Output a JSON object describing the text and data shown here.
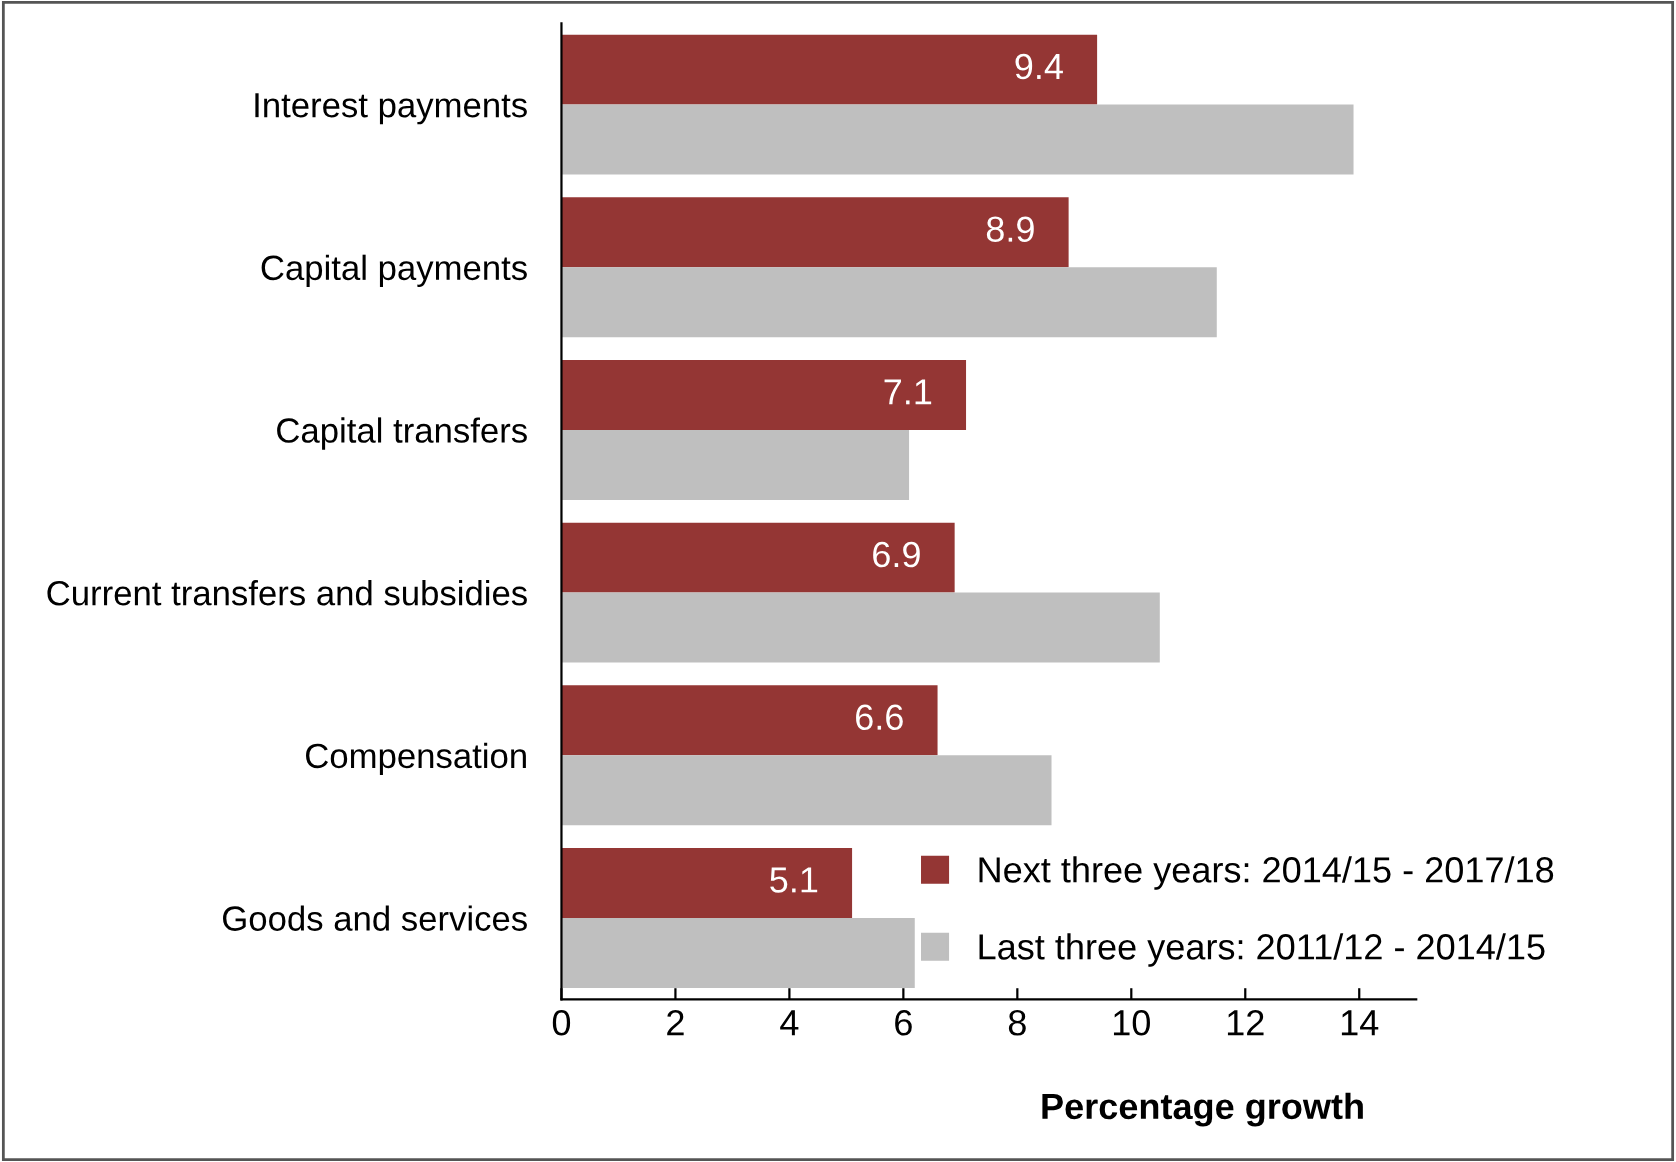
{
  "chart_data": {
    "type": "bar",
    "orientation": "horizontal",
    "xlabel": "Percentage growth",
    "categories": [
      "Interest payments",
      "Capital payments",
      "Capital transfers",
      "Current transfers and subsidies",
      "Compensation",
      "Goods and services"
    ],
    "series": [
      {
        "name": "Next three years: 2014/15 - 2017/18",
        "color": "#943634",
        "values": [
          9.4,
          8.9,
          7.1,
          6.9,
          6.6,
          5.1
        ],
        "value_labels": [
          "9.4",
          "8.9",
          "7.1",
          "6.9",
          "6.6",
          "5.1"
        ]
      },
      {
        "name": "Last three years: 2011/12 - 2014/15",
        "color": "#bfbfbf",
        "values": [
          13.9,
          11.5,
          6.1,
          10.5,
          8.6,
          6.2
        ]
      }
    ],
    "xlim": [
      0,
      15
    ],
    "xticks": [
      0,
      2,
      4,
      6,
      8,
      10,
      12,
      14
    ],
    "grid": false,
    "legend": "bottom right"
  }
}
